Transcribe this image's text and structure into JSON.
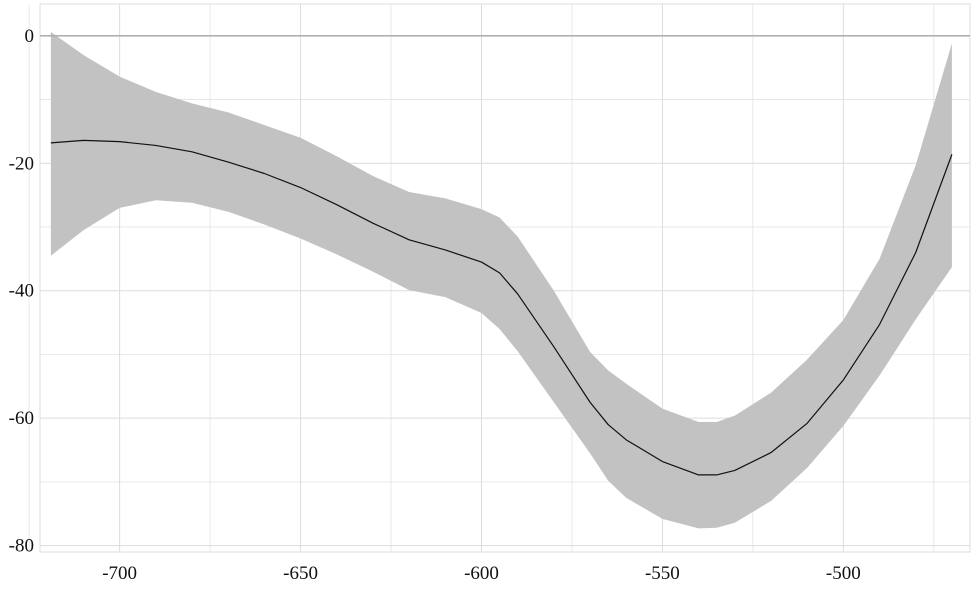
{
  "chart_data": {
    "type": "line",
    "title": "",
    "xlabel": "",
    "ylabel": "",
    "xlim": [
      -722,
      -465
    ],
    "ylim": [
      -81,
      5
    ],
    "x_ticks": [
      -700,
      -650,
      -600,
      -550,
      -500
    ],
    "x_tick_labels": [
      "-700",
      "-650",
      "-600",
      "-550",
      "-500"
    ],
    "y_ticks": [
      0,
      -20,
      -40,
      -60,
      -80
    ],
    "y_tick_labels": [
      "0",
      "-20",
      "-40",
      "-60",
      "-80"
    ],
    "x_minor_grid": [
      -725,
      -675,
      -625,
      -575,
      -525,
      -475
    ],
    "y_minor_grid": [
      -10,
      -30,
      -50,
      -70
    ],
    "reference_line_y": 0,
    "grid": true,
    "colors": {
      "band": "#c2c2c2",
      "line": "#111111",
      "grid": "#e3e3e3",
      "zero": "#b0b0b0"
    },
    "series": [
      {
        "x": [
          -719,
          -710,
          -700,
          -690,
          -680,
          -670,
          -660,
          -650,
          -640,
          -630,
          -620,
          -610,
          -600,
          -595,
          -590,
          -580,
          -570,
          -565,
          -560,
          -550,
          -540,
          -535,
          -530,
          -520,
          -510,
          -500,
          -490,
          -480,
          -470
        ],
        "y": [
          -16.8,
          -16.4,
          -16.6,
          -17.2,
          -18.2,
          -19.8,
          -21.6,
          -23.8,
          -26.5,
          -29.4,
          -32.0,
          -33.6,
          -35.5,
          -37.2,
          -40.5,
          -48.8,
          -57.5,
          -61.0,
          -63.4,
          -66.8,
          -68.9,
          -68.9,
          -68.2,
          -65.4,
          -60.8,
          -54.0,
          -45.3,
          -34.0,
          -18.6
        ],
        "lower": [
          -34.5,
          -30.5,
          -27.0,
          -25.8,
          -26.2,
          -27.6,
          -29.6,
          -31.8,
          -34.3,
          -37.0,
          -39.9,
          -41.0,
          -43.5,
          -46.0,
          -49.5,
          -57.5,
          -65.5,
          -69.8,
          -72.5,
          -75.8,
          -77.3,
          -77.2,
          -76.4,
          -73.0,
          -67.8,
          -61.2,
          -53.3,
          -44.5,
          -36.3
        ],
        "upper": [
          0.6,
          -3.0,
          -6.4,
          -8.8,
          -10.6,
          -12.0,
          -14.0,
          -16.0,
          -18.9,
          -22.0,
          -24.5,
          -25.5,
          -27.2,
          -28.5,
          -31.5,
          -40.0,
          -49.6,
          -52.5,
          -54.6,
          -58.5,
          -60.6,
          -60.6,
          -59.6,
          -56.0,
          -50.8,
          -44.6,
          -35.0,
          -20.3,
          -1.2
        ]
      }
    ]
  }
}
